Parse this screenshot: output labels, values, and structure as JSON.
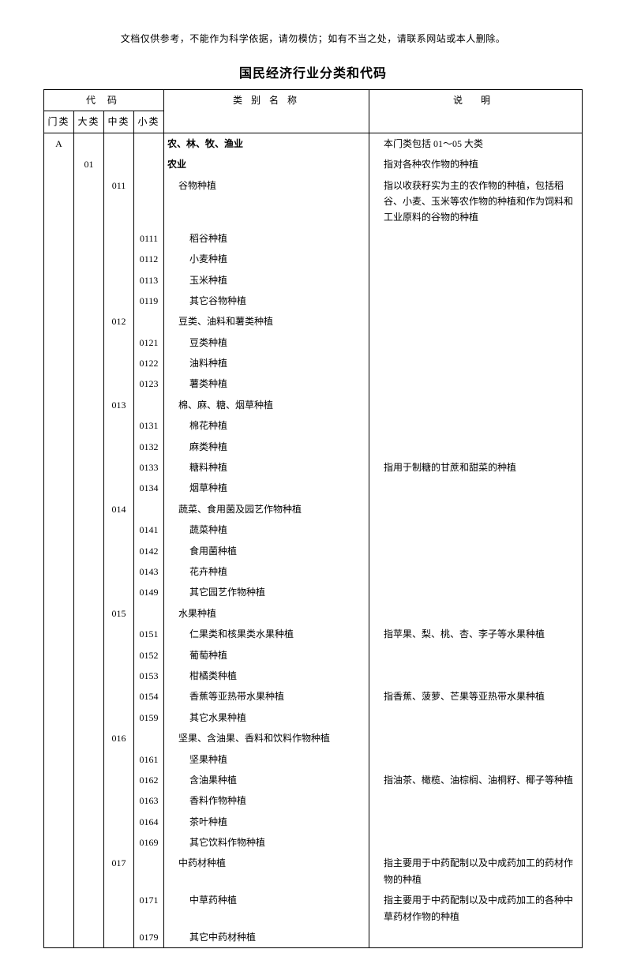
{
  "disclaimer": "文档仅供参考，不能作为科学依据，请勿模仿；如有不当之处，请联系网站或本人删除。",
  "title": "国民经济行业分类和代码",
  "header": {
    "code_group": "代  码",
    "c1": "门类",
    "c2": "大类",
    "c3": "中类",
    "c4": "小类",
    "name": "类 别 名 称",
    "desc": "说  明"
  },
  "rows": [
    {
      "c1": "A",
      "c2": "",
      "c3": "",
      "c4": "",
      "name": "农、林、牧、渔业",
      "desc": "本门类包括 01～05 大类",
      "bold": true,
      "ind": 0
    },
    {
      "c1": "",
      "c2": "01",
      "c3": "",
      "c4": "",
      "name": "农业",
      "desc": "指对各种农作物的种植",
      "bold": true,
      "ind": 0
    },
    {
      "c1": "",
      "c2": "",
      "c3": "011",
      "c4": "",
      "name": "谷物种植",
      "desc": "指以收获籽实为主的农作物的种植，包括稻谷、小麦、玉米等农作物的种植和作为饲料和工业原料的谷物的种植",
      "ind": 1
    },
    {
      "c1": "",
      "c2": "",
      "c3": "",
      "c4": "0111",
      "name": "稻谷种植",
      "desc": "",
      "ind": 2
    },
    {
      "c1": "",
      "c2": "",
      "c3": "",
      "c4": "0112",
      "name": "小麦种植",
      "desc": "",
      "ind": 2
    },
    {
      "c1": "",
      "c2": "",
      "c3": "",
      "c4": "0113",
      "name": "玉米种植",
      "desc": "",
      "ind": 2
    },
    {
      "c1": "",
      "c2": "",
      "c3": "",
      "c4": "0119",
      "name": "其它谷物种植",
      "desc": "",
      "ind": 2
    },
    {
      "c1": "",
      "c2": "",
      "c3": "012",
      "c4": "",
      "name": "豆类、油料和薯类种植",
      "desc": "",
      "ind": 1
    },
    {
      "c1": "",
      "c2": "",
      "c3": "",
      "c4": "0121",
      "name": "豆类种植",
      "desc": "",
      "ind": 2
    },
    {
      "c1": "",
      "c2": "",
      "c3": "",
      "c4": "0122",
      "name": "油料种植",
      "desc": "",
      "ind": 2
    },
    {
      "c1": "",
      "c2": "",
      "c3": "",
      "c4": "0123",
      "name": "薯类种植",
      "desc": "",
      "ind": 2
    },
    {
      "c1": "",
      "c2": "",
      "c3": "013",
      "c4": "",
      "name": "棉、麻、糖、烟草种植",
      "desc": "",
      "ind": 1
    },
    {
      "c1": "",
      "c2": "",
      "c3": "",
      "c4": "0131",
      "name": "棉花种植",
      "desc": "",
      "ind": 2
    },
    {
      "c1": "",
      "c2": "",
      "c3": "",
      "c4": "0132",
      "name": "麻类种植",
      "desc": "",
      "ind": 2
    },
    {
      "c1": "",
      "c2": "",
      "c3": "",
      "c4": "0133",
      "name": "糖料种植",
      "desc": "指用于制糖的甘蔗和甜菜的种植",
      "ind": 2
    },
    {
      "c1": "",
      "c2": "",
      "c3": "",
      "c4": "0134",
      "name": "烟草种植",
      "desc": "",
      "ind": 2
    },
    {
      "c1": "",
      "c2": "",
      "c3": "014",
      "c4": "",
      "name": "蔬菜、食用菌及园艺作物种植",
      "desc": "",
      "ind": 1
    },
    {
      "c1": "",
      "c2": "",
      "c3": "",
      "c4": "0141",
      "name": "蔬菜种植",
      "desc": "",
      "ind": 2
    },
    {
      "c1": "",
      "c2": "",
      "c3": "",
      "c4": "0142",
      "name": "食用菌种植",
      "desc": "",
      "ind": 2
    },
    {
      "c1": "",
      "c2": "",
      "c3": "",
      "c4": "0143",
      "name": "花卉种植",
      "desc": "",
      "ind": 2
    },
    {
      "c1": "",
      "c2": "",
      "c3": "",
      "c4": "0149",
      "name": "其它园艺作物种植",
      "desc": "",
      "ind": 2
    },
    {
      "c1": "",
      "c2": "",
      "c3": "015",
      "c4": "",
      "name": "水果种植",
      "desc": "",
      "ind": 1
    },
    {
      "c1": "",
      "c2": "",
      "c3": "",
      "c4": "0151",
      "name": "仁果类和核果类水果种植",
      "desc": "指苹果、梨、桃、杏、李子等水果种植",
      "ind": 2
    },
    {
      "c1": "",
      "c2": "",
      "c3": "",
      "c4": "0152",
      "name": "葡萄种植",
      "desc": "",
      "ind": 2
    },
    {
      "c1": "",
      "c2": "",
      "c3": "",
      "c4": "0153",
      "name": "柑橘类种植",
      "desc": "",
      "ind": 2
    },
    {
      "c1": "",
      "c2": "",
      "c3": "",
      "c4": "0154",
      "name": "香蕉等亚热带水果种植",
      "desc": "指香蕉、菠萝、芒果等亚热带水果种植",
      "ind": 2
    },
    {
      "c1": "",
      "c2": "",
      "c3": "",
      "c4": "0159",
      "name": "其它水果种植",
      "desc": "",
      "ind": 2
    },
    {
      "c1": "",
      "c2": "",
      "c3": "016",
      "c4": "",
      "name": "坚果、含油果、香料和饮料作物种植",
      "desc": "",
      "ind": 1
    },
    {
      "c1": "",
      "c2": "",
      "c3": "",
      "c4": "0161",
      "name": "坚果种植",
      "desc": "",
      "ind": 2
    },
    {
      "c1": "",
      "c2": "",
      "c3": "",
      "c4": "0162",
      "name": "含油果种植",
      "desc": "指油茶、橄榄、油棕榈、油桐籽、椰子等种植",
      "ind": 2
    },
    {
      "c1": "",
      "c2": "",
      "c3": "",
      "c4": "0163",
      "name": "香料作物种植",
      "desc": "",
      "ind": 2
    },
    {
      "c1": "",
      "c2": "",
      "c3": "",
      "c4": "0164",
      "name": "茶叶种植",
      "desc": "",
      "ind": 2
    },
    {
      "c1": "",
      "c2": "",
      "c3": "",
      "c4": "0169",
      "name": "其它饮料作物种植",
      "desc": "",
      "ind": 2
    },
    {
      "c1": "",
      "c2": "",
      "c3": "017",
      "c4": "",
      "name": "中药材种植",
      "desc": "指主要用于中药配制以及中成药加工的药材作物的种植",
      "ind": 1
    },
    {
      "c1": "",
      "c2": "",
      "c3": "",
      "c4": "0171",
      "name": "中草药种植",
      "desc": "指主要用于中药配制以及中成药加工的各种中草药材作物的种植",
      "ind": 2
    },
    {
      "c1": "",
      "c2": "",
      "c3": "",
      "c4": "0179",
      "name": "其它中药材种植",
      "desc": "",
      "ind": 2
    }
  ]
}
